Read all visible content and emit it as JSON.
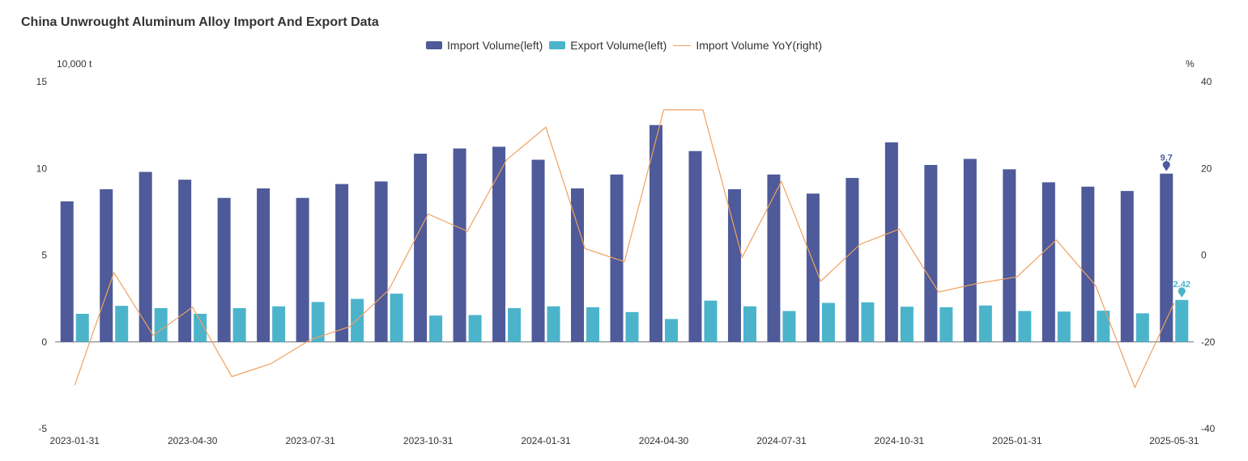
{
  "chart_data": {
    "type": "bar",
    "title": "China Unwrought Aluminum Alloy Import And Export Data",
    "left_unit": "10,000 t",
    "right_unit": "%",
    "left_axis": {
      "min": -5,
      "max": 15,
      "ticks": [
        15,
        10,
        5,
        0,
        -5
      ]
    },
    "right_axis": {
      "min": -40,
      "max": 40,
      "ticks": [
        40,
        20,
        0,
        -20,
        -40
      ]
    },
    "categories": [
      "2023-01-31",
      "2023-02-28",
      "2023-03-31",
      "2023-04-30",
      "2023-05-31",
      "2023-06-30",
      "2023-07-31",
      "2023-08-31",
      "2023-09-30",
      "2023-10-31",
      "2023-11-30",
      "2023-12-31",
      "2024-01-31",
      "2024-02-29",
      "2024-03-31",
      "2024-04-30",
      "2024-05-31",
      "2024-06-30",
      "2024-07-31",
      "2024-08-31",
      "2024-09-30",
      "2024-10-31",
      "2024-11-30",
      "2024-12-31",
      "2025-01-31",
      "2025-02-28",
      "2025-03-31",
      "2025-04-30",
      "2025-05-31"
    ],
    "x_tick_labels": [
      {
        "index": 0,
        "label": "2023-01-31"
      },
      {
        "index": 3,
        "label": "2023-04-30"
      },
      {
        "index": 6,
        "label": "2023-07-31"
      },
      {
        "index": 9,
        "label": "2023-10-31"
      },
      {
        "index": 12,
        "label": "2024-01-31"
      },
      {
        "index": 15,
        "label": "2024-04-30"
      },
      {
        "index": 18,
        "label": "2024-07-31"
      },
      {
        "index": 21,
        "label": "2024-10-31"
      },
      {
        "index": 24,
        "label": "2025-01-31"
      },
      {
        "index": 28,
        "label": "2025-05-31"
      }
    ],
    "series": [
      {
        "name": "Import Volume(left)",
        "type": "bar",
        "axis": "left",
        "color": "#4e5a99",
        "values": [
          8.1,
          8.8,
          9.8,
          9.35,
          8.3,
          8.85,
          8.3,
          9.1,
          9.25,
          10.85,
          11.15,
          11.25,
          10.5,
          8.85,
          9.65,
          12.5,
          11.0,
          8.8,
          9.65,
          8.55,
          9.45,
          11.5,
          10.2,
          10.55,
          9.95,
          9.2,
          8.95,
          8.7,
          9.7
        ]
      },
      {
        "name": "Export Volume(left)",
        "type": "bar",
        "axis": "left",
        "color": "#4bb4cb",
        "values": [
          1.62,
          2.08,
          1.95,
          1.62,
          1.95,
          2.05,
          2.3,
          2.48,
          2.78,
          1.52,
          1.55,
          1.95,
          2.05,
          2.0,
          1.72,
          1.32,
          2.38,
          2.05,
          1.78,
          2.25,
          2.28,
          2.03,
          2.0,
          2.1,
          1.78,
          1.75,
          1.8,
          1.65,
          2.42
        ]
      },
      {
        "name": "Import Volume YoY(right)",
        "type": "line",
        "axis": "right",
        "color": "#f0a15f",
        "values": [
          -30,
          -4,
          -18.5,
          -12,
          -28,
          -25,
          -19.5,
          -16.5,
          -8,
          9.5,
          5.5,
          22,
          29.5,
          1.5,
          -1.5,
          33.5,
          33.5,
          -0.5,
          17,
          -6,
          2.5,
          6,
          -8.5,
          -6.5,
          -5,
          3.5,
          -7,
          -30.5,
          -11
        ]
      }
    ],
    "annotations": [
      {
        "series": "Import Volume(left)",
        "index": 28,
        "label": "9.7"
      },
      {
        "series": "Export Volume(left)",
        "index": 28,
        "label": "2.42"
      }
    ]
  }
}
